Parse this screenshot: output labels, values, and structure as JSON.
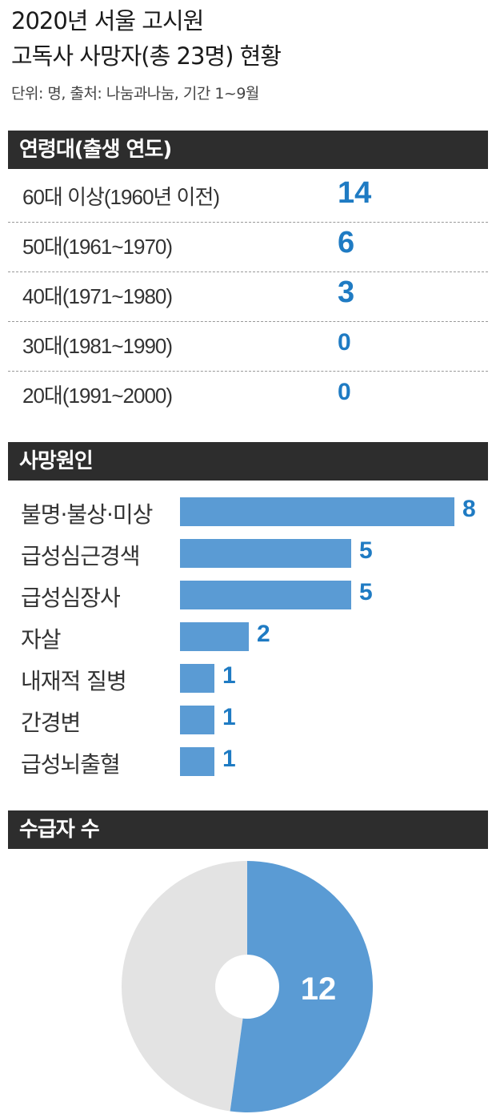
{
  "header": {
    "title_line1": "2020년 서울 고시원",
    "title_line2": "고독사 사망자(총 23명) 현황",
    "subtitle": "단위: 명, 출처: 나눔과나눔, 기간 1~9월"
  },
  "sections": {
    "age": "연령대(출생 연도)",
    "cause": "사망원인",
    "welfare": "수급자 수"
  },
  "colors": {
    "accent": "#1f7bc3",
    "bar": "#5a9bd4",
    "pie_rest": "#e3e3e3",
    "section_bg": "#2d2d2d"
  },
  "chart_data": [
    {
      "type": "table",
      "title": "연령대(출생 연도)",
      "rows": [
        {
          "label": "60대 이상(1960년 이전)",
          "value": "14"
        },
        {
          "label": "50대(1961~1970)",
          "value": "6"
        },
        {
          "label": "40대(1971~1980)",
          "value": "3"
        },
        {
          "label": "30대(1981~1990)",
          "value": "0"
        },
        {
          "label": "20대(1991~2000)",
          "value": "0"
        }
      ]
    },
    {
      "type": "bar",
      "title": "사망원인",
      "categories": [
        "불명·불상·미상",
        "급성심근경색",
        "급성심장사",
        "자살",
        "내재적 질병",
        "간경변",
        "급성뇌출혈"
      ],
      "values": [
        8,
        5,
        5,
        2,
        1,
        1,
        1
      ],
      "values_text": [
        "8",
        "5",
        "5",
        "2",
        "1",
        "1",
        "1"
      ],
      "xlim": [
        0,
        8
      ]
    },
    {
      "type": "pie",
      "title": "수급자 수",
      "total": 23,
      "values": [
        12,
        11
      ],
      "slice_label": "12"
    }
  ]
}
